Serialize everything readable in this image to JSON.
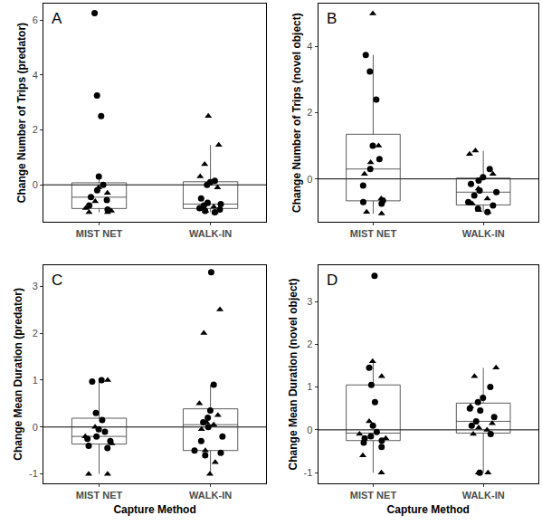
{
  "chart_data": [
    {
      "type": "box",
      "annotation": "A",
      "y_label": "Change Number of Trips (predator)",
      "categories": [
        "MIST NET",
        "WALK-IN"
      ],
      "reference_line": 0,
      "ylim": [
        -1.35,
        6.6
      ],
      "yticks": [
        0,
        2,
        4,
        6
      ],
      "grid": false,
      "series": [
        {
          "marker": "circle",
          "color": "#000000",
          "values": [
            [
              6.25,
              3.25,
              2.5,
              0.3,
              0.0,
              -0.2,
              -0.45,
              -0.55,
              -0.75,
              -0.9
            ],
            [
              0.15,
              0.1,
              0.0,
              -0.5,
              -0.65,
              -0.75,
              -0.85,
              -0.9,
              -0.95,
              -1.0,
              -0.7
            ]
          ]
        },
        {
          "marker": "triangle",
          "color": "#000000",
          "values": [
            [
              -0.1,
              -0.3,
              -0.6,
              -0.85,
              -1.0,
              -1.0,
              -0.95
            ],
            [
              2.5,
              1.45,
              0.75,
              0.3,
              -0.1,
              -0.7,
              -0.8,
              -0.85,
              -0.95,
              -1.0
            ]
          ]
        }
      ]
    },
    {
      "type": "box",
      "annotation": "B",
      "y_label": "Change Number of Trips (novel object)",
      "categories": [
        "MIST NET",
        "WALK-IN"
      ],
      "reference_line": 0,
      "ylim": [
        -1.3,
        5.3
      ],
      "yticks": [
        0,
        2,
        4
      ],
      "grid": false,
      "series": [
        {
          "marker": "circle",
          "color": "#000000",
          "values": [
            [
              3.75,
              3.25,
              2.4,
              1.0,
              0.6,
              0.3,
              -0.2,
              -0.7,
              -0.75,
              -0.65
            ],
            [
              0.3,
              0.05,
              -0.05,
              -0.15,
              -0.35,
              -0.4,
              -0.5,
              -0.7,
              -0.9,
              -1.0,
              -0.8
            ]
          ]
        },
        {
          "marker": "triangle",
          "color": "#000000",
          "values": [
            [
              5.0,
              1.0,
              0.5,
              0.15,
              -1.0,
              -1.05,
              -0.6
            ],
            [
              0.85,
              0.75,
              0.15,
              -0.3,
              -0.6,
              -0.75,
              -0.95,
              -1.0
            ]
          ]
        }
      ]
    },
    {
      "type": "box",
      "annotation": "C",
      "y_label": "Change Mean Duration (predator)",
      "x_label": "Capture Method",
      "categories": [
        "MIST NET",
        "WALK-IN"
      ],
      "reference_line": 0,
      "ylim": [
        -1.2,
        3.45
      ],
      "yticks": [
        -1,
        0,
        1,
        2,
        3
      ],
      "grid": false,
      "series": [
        {
          "marker": "circle",
          "color": "#000000",
          "values": [
            [
              1.0,
              0.97,
              0.3,
              0.15,
              -0.05,
              -0.1,
              -0.2,
              -0.25,
              -0.3,
              -0.4,
              -0.45
            ],
            [
              3.3,
              0.9,
              0.35,
              0.2,
              0.1,
              0.0,
              -0.2,
              -0.3,
              -0.55,
              -0.6,
              -0.5
            ]
          ]
        },
        {
          "marker": "triangle",
          "color": "#000000",
          "values": [
            [
              1.0,
              0.0,
              -0.2,
              -0.35,
              -1.0,
              -1.0
            ],
            [
              2.5,
              2.0,
              0.5,
              0.25,
              0.1,
              -0.05,
              -0.5,
              -0.75,
              -1.0,
              0.05
            ]
          ]
        }
      ]
    },
    {
      "type": "box",
      "annotation": "D",
      "y_label": "Change Mean Duration (novel object)",
      "x_label": "Capture Method",
      "categories": [
        "MIST NET",
        "WALK-IN"
      ],
      "reference_line": 0,
      "ylim": [
        -1.25,
        3.85
      ],
      "yticks": [
        -1,
        0,
        1,
        2,
        3
      ],
      "grid": false,
      "series": [
        {
          "marker": "circle",
          "color": "#000000",
          "values": [
            [
              3.6,
              1.45,
              1.05,
              0.65,
              0.1,
              -0.05,
              -0.15,
              -0.2,
              -0.25,
              -0.4,
              -0.3
            ],
            [
              1.0,
              0.75,
              0.65,
              0.5,
              0.45,
              0.3,
              0.2,
              0.1,
              -0.1,
              -1.0
            ]
          ]
        },
        {
          "marker": "triangle",
          "color": "#000000",
          "values": [
            [
              1.6,
              1.25,
              0.2,
              -0.1,
              -0.2,
              -0.6,
              -1.0
            ],
            [
              1.45,
              1.25,
              0.55,
              0.15,
              0.05,
              0.0,
              -0.1,
              -1.0,
              -1.0
            ]
          ]
        }
      ]
    }
  ]
}
